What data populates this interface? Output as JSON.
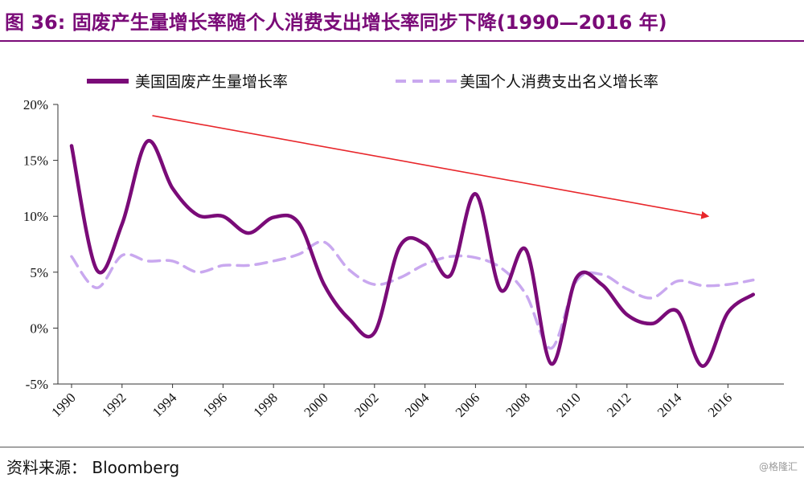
{
  "title": "图 36: 固废产生量增长率随个人消费支出增长率同步下降(1990—2016 年)",
  "source": "资料来源： Bloomberg",
  "watermark": "@格隆汇",
  "colors": {
    "brand": "#7a0b78",
    "series1": "#7a0b78",
    "series2": "#c9a8ef",
    "trend": "#e8262b"
  },
  "chart_data": {
    "type": "line",
    "title": "",
    "xlabel": "",
    "ylabel": "",
    "xlim": [
      1990,
      2017
    ],
    "ylim": [
      -5,
      20
    ],
    "y_ticks": [
      "-5%",
      "0%",
      "5%",
      "10%",
      "15%",
      "20%"
    ],
    "y_tick_values": [
      -5,
      0,
      5,
      10,
      15,
      20
    ],
    "x_ticks": [
      "1990",
      "1992",
      "1994",
      "1996",
      "1998",
      "2000",
      "2002",
      "2004",
      "2006",
      "2008",
      "2010",
      "2012",
      "2014",
      "2016"
    ],
    "x_tick_values": [
      1990,
      1992,
      1994,
      1996,
      1998,
      2000,
      2002,
      2004,
      2006,
      2008,
      2010,
      2012,
      2014,
      2016
    ],
    "grid": false,
    "legend_position": "top",
    "series": [
      {
        "name": "美国固废产生量增长率",
        "style": "solid",
        "x": [
          1990,
          1991,
          1992,
          1993,
          1994,
          1995,
          1996,
          1997,
          1998,
          1999,
          2000,
          2001,
          2002,
          2003,
          2004,
          2005,
          2006,
          2007,
          2008,
          2009,
          2010,
          2011,
          2012,
          2013,
          2014,
          2015,
          2016,
          2017
        ],
        "values": [
          16.3,
          5.2,
          9.3,
          16.7,
          12.5,
          10.1,
          10.0,
          8.5,
          9.9,
          9.4,
          3.9,
          0.8,
          -0.4,
          7.3,
          7.5,
          4.7,
          12.0,
          3.4,
          7.0,
          -3.2,
          4.5,
          3.9,
          1.2,
          0.4,
          1.5,
          -3.4,
          1.4,
          3.0
        ]
      },
      {
        "name": "美国个人消费支出名义增长率",
        "style": "dashed",
        "x": [
          1990,
          1991,
          1992,
          1993,
          1994,
          1995,
          1996,
          1997,
          1998,
          1999,
          2000,
          2001,
          2002,
          2003,
          2004,
          2005,
          2006,
          2007,
          2008,
          2009,
          2010,
          2011,
          2012,
          2013,
          2014,
          2015,
          2016,
          2017
        ],
        "values": [
          6.4,
          3.6,
          6.5,
          6.0,
          6.0,
          5.0,
          5.6,
          5.6,
          6.0,
          6.6,
          7.7,
          5.2,
          3.9,
          4.5,
          5.7,
          6.4,
          6.3,
          5.4,
          3.0,
          -1.8,
          4.2,
          4.8,
          3.5,
          2.7,
          4.2,
          3.8,
          3.9,
          4.3
        ]
      }
    ],
    "annotations": [
      {
        "type": "arrow",
        "from": {
          "x": 1993.2,
          "y": 19.0
        },
        "to": {
          "x": 2015.2,
          "y": 10.0
        }
      }
    ]
  }
}
